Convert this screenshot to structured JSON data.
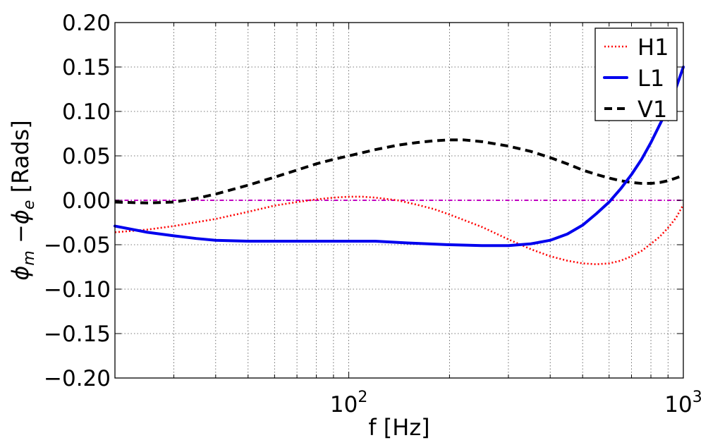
{
  "chart_data": {
    "type": "line",
    "xlabel": "f [Hz]",
    "ylabel_parts": [
      "ϕ",
      "m",
      " −ϕ",
      "e",
      " [Rads]"
    ],
    "x_scale": "log",
    "xlim": [
      20,
      1000
    ],
    "ylim": [
      -0.2,
      0.2
    ],
    "x_ticks": [
      {
        "value": 100,
        "base": "10",
        "exp": "2"
      },
      {
        "value": 1000,
        "base": "10",
        "exp": "3"
      }
    ],
    "y_ticks": [
      {
        "value": 0.2,
        "label": "0.20"
      },
      {
        "value": 0.15,
        "label": "0.15"
      },
      {
        "value": 0.1,
        "label": "0.10"
      },
      {
        "value": 0.05,
        "label": "0.05"
      },
      {
        "value": 0.0,
        "label": "0.00"
      },
      {
        "value": -0.05,
        "label": "−0.05"
      },
      {
        "value": -0.1,
        "label": "−0.10"
      },
      {
        "value": -0.15,
        "label": "−0.15"
      },
      {
        "value": -0.2,
        "label": "−0.20"
      }
    ],
    "grid": true,
    "legend_position": "top-right",
    "series": [
      {
        "name": "H1",
        "color": "#ff0000",
        "style": "dotted",
        "points": [
          [
            20,
            -0.036
          ],
          [
            25,
            -0.033
          ],
          [
            30,
            -0.029
          ],
          [
            40,
            -0.021
          ],
          [
            50,
            -0.013
          ],
          [
            60,
            -0.006
          ],
          [
            70,
            -0.002
          ],
          [
            80,
            0.001
          ],
          [
            90,
            0.003
          ],
          [
            100,
            0.004
          ],
          [
            110,
            0.004
          ],
          [
            120,
            0.003
          ],
          [
            140,
            0.0
          ],
          [
            160,
            -0.005
          ],
          [
            180,
            -0.01
          ],
          [
            200,
            -0.016
          ],
          [
            250,
            -0.03
          ],
          [
            300,
            -0.044
          ],
          [
            350,
            -0.055
          ],
          [
            400,
            -0.063
          ],
          [
            450,
            -0.068
          ],
          [
            500,
            -0.071
          ],
          [
            550,
            -0.072
          ],
          [
            600,
            -0.071
          ],
          [
            650,
            -0.068
          ],
          [
            700,
            -0.063
          ],
          [
            750,
            -0.057
          ],
          [
            800,
            -0.049
          ],
          [
            850,
            -0.041
          ],
          [
            900,
            -0.031
          ],
          [
            950,
            -0.02
          ],
          [
            1000,
            -0.005
          ]
        ]
      },
      {
        "name": "L1",
        "color": "#0000ee",
        "style": "solid",
        "points": [
          [
            20,
            -0.029
          ],
          [
            25,
            -0.036
          ],
          [
            30,
            -0.04
          ],
          [
            35,
            -0.043
          ],
          [
            40,
            -0.045
          ],
          [
            50,
            -0.046
          ],
          [
            60,
            -0.046
          ],
          [
            70,
            -0.046
          ],
          [
            80,
            -0.046
          ],
          [
            100,
            -0.046
          ],
          [
            120,
            -0.046
          ],
          [
            150,
            -0.048
          ],
          [
            200,
            -0.05
          ],
          [
            250,
            -0.051
          ],
          [
            300,
            -0.051
          ],
          [
            350,
            -0.049
          ],
          [
            400,
            -0.045
          ],
          [
            450,
            -0.038
          ],
          [
            500,
            -0.028
          ],
          [
            550,
            -0.015
          ],
          [
            600,
            -0.002
          ],
          [
            650,
            0.013
          ],
          [
            700,
            0.029
          ],
          [
            750,
            0.046
          ],
          [
            800,
            0.065
          ],
          [
            850,
            0.085
          ],
          [
            900,
            0.104
          ],
          [
            950,
            0.126
          ],
          [
            1000,
            0.15
          ]
        ]
      },
      {
        "name": "V1",
        "color": "#000000",
        "style": "dashed",
        "points": [
          [
            20,
            -0.002
          ],
          [
            25,
            -0.003
          ],
          [
            30,
            -0.002
          ],
          [
            35,
            0.002
          ],
          [
            40,
            0.007
          ],
          [
            50,
            0.017
          ],
          [
            60,
            0.026
          ],
          [
            70,
            0.034
          ],
          [
            80,
            0.041
          ],
          [
            90,
            0.046
          ],
          [
            100,
            0.05
          ],
          [
            120,
            0.057
          ],
          [
            140,
            0.062
          ],
          [
            160,
            0.065
          ],
          [
            180,
            0.067
          ],
          [
            200,
            0.068
          ],
          [
            220,
            0.068
          ],
          [
            250,
            0.066
          ],
          [
            300,
            0.061
          ],
          [
            350,
            0.055
          ],
          [
            400,
            0.048
          ],
          [
            450,
            0.041
          ],
          [
            500,
            0.034
          ],
          [
            550,
            0.029
          ],
          [
            600,
            0.025
          ],
          [
            650,
            0.022
          ],
          [
            700,
            0.02
          ],
          [
            750,
            0.019
          ],
          [
            800,
            0.019
          ],
          [
            850,
            0.02
          ],
          [
            900,
            0.022
          ],
          [
            950,
            0.025
          ],
          [
            1000,
            0.028
          ]
        ]
      },
      {
        "name": "",
        "color": "#c000c0",
        "style": "dashdot",
        "points": [
          [
            20,
            0.0
          ],
          [
            1000,
            0.0
          ]
        ]
      }
    ]
  }
}
